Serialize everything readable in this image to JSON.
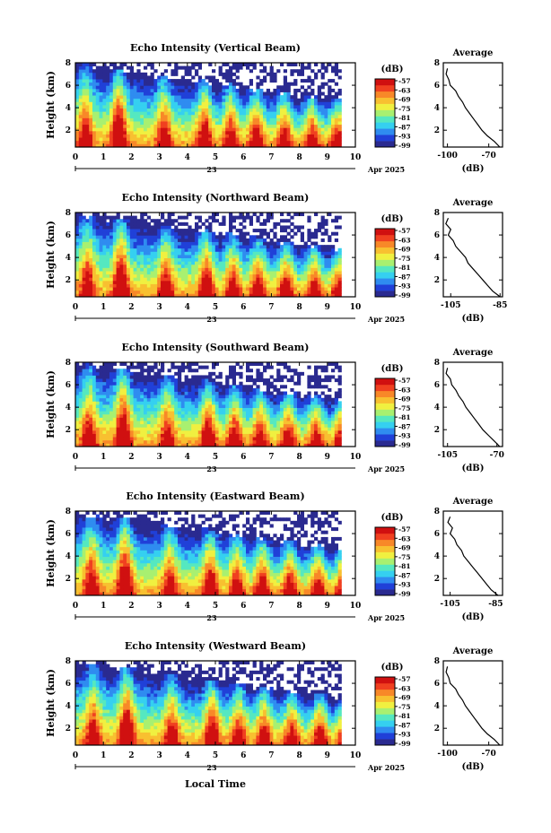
{
  "figure": {
    "xlabel": "Local Time",
    "day_label": "23",
    "month_label": "Apr 2025",
    "colorbar_unit": "(dB)",
    "colorbar_ticks": [
      "-57",
      "-63",
      "-69",
      "-75",
      "-81",
      "-87",
      "-93",
      "-99"
    ],
    "colormap": [
      "#2a2a90",
      "#2040d8",
      "#2f8cf0",
      "#35d0f0",
      "#55e8c0",
      "#a8f070",
      "#f0f040",
      "#f8c030",
      "#f88828",
      "#f04020",
      "#d01010"
    ]
  },
  "chart_data": [
    {
      "type": "heatmap",
      "title": "Echo Intensity (Vertical Beam)",
      "ylabel": "Height (km)",
      "x_ticks": [
        "0",
        "1",
        "2",
        "3",
        "4",
        "5",
        "6",
        "7",
        "8",
        "9",
        "10"
      ],
      "y_ticks": [
        "2",
        "4",
        "6",
        "8"
      ],
      "xlim": [
        0,
        10
      ],
      "ylim": [
        0.5,
        8.0
      ],
      "colorbar_range_db": [
        -99,
        -57
      ],
      "average_profile": {
        "title": "Average",
        "xlabel": "(dB)",
        "x_ticks": [
          "-100",
          "-70"
        ],
        "xlim": [
          -103,
          -60
        ],
        "y_ticks": [
          "2",
          "4",
          "6",
          "8"
        ],
        "height_km": [
          0.5,
          1.0,
          1.5,
          2.0,
          2.5,
          3.0,
          3.5,
          4.0,
          4.5,
          5.0,
          5.5,
          6.0,
          6.5,
          7.0,
          7.5
        ],
        "db": [
          -62,
          -66,
          -71,
          -75,
          -78,
          -81,
          -84,
          -87,
          -89,
          -92,
          -94,
          -98,
          -99,
          -101,
          -100
        ]
      }
    },
    {
      "type": "heatmap",
      "title": "Echo Intensity (Northward Beam)",
      "ylabel": "Height (km)",
      "x_ticks": [
        "0",
        "1",
        "2",
        "3",
        "4",
        "5",
        "6",
        "7",
        "8",
        "9",
        "10"
      ],
      "y_ticks": [
        "2",
        "4",
        "6",
        "8"
      ],
      "xlim": [
        0,
        10
      ],
      "ylim": [
        0.5,
        8.0
      ],
      "colorbar_range_db": [
        -99,
        -57
      ],
      "average_profile": {
        "title": "Average",
        "xlabel": "(dB)",
        "x_ticks": [
          "-105",
          "-85"
        ],
        "xlim": [
          -108,
          -84
        ],
        "y_ticks": [
          "2",
          "4",
          "6",
          "8"
        ],
        "height_km": [
          0.5,
          1.0,
          1.5,
          2.0,
          2.5,
          3.0,
          3.5,
          4.0,
          4.5,
          5.0,
          5.5,
          6.0,
          6.5,
          7.0,
          7.5
        ],
        "db": [
          -85,
          -88,
          -90,
          -92,
          -94,
          -96,
          -98,
          -99,
          -101,
          -103,
          -104,
          -106,
          -105,
          -107,
          -106
        ]
      }
    },
    {
      "type": "heatmap",
      "title": "Echo Intensity (Southward Beam)",
      "ylabel": "Height (km)",
      "x_ticks": [
        "0",
        "1",
        "2",
        "3",
        "4",
        "5",
        "6",
        "7",
        "8",
        "9",
        "10"
      ],
      "y_ticks": [
        "2",
        "4",
        "6",
        "8"
      ],
      "xlim": [
        0,
        10
      ],
      "ylim": [
        0.5,
        8.0
      ],
      "colorbar_range_db": [
        -99,
        -57
      ],
      "average_profile": {
        "title": "Average",
        "xlabel": "(dB)",
        "x_ticks": [
          "-105",
          "-70"
        ],
        "xlim": [
          -108,
          -66
        ],
        "y_ticks": [
          "2",
          "4",
          "6",
          "8"
        ],
        "height_km": [
          0.5,
          1.0,
          1.5,
          2.0,
          2.5,
          3.0,
          3.5,
          4.0,
          4.5,
          5.0,
          5.5,
          6.0,
          6.5,
          7.0,
          7.5
        ],
        "db": [
          -68,
          -72,
          -76,
          -80,
          -83,
          -86,
          -89,
          -92,
          -94,
          -97,
          -99,
          -102,
          -103,
          -106,
          -105
        ]
      }
    },
    {
      "type": "heatmap",
      "title": "Echo Intensity (Eastward Beam)",
      "ylabel": "Height (km)",
      "x_ticks": [
        "0",
        "1",
        "2",
        "3",
        "4",
        "5",
        "6",
        "7",
        "8",
        "9",
        "10"
      ],
      "y_ticks": [
        "2",
        "4",
        "6",
        "8"
      ],
      "xlim": [
        0,
        10
      ],
      "ylim": [
        0.5,
        8.0
      ],
      "colorbar_range_db": [
        -99,
        -57
      ],
      "average_profile": {
        "title": "Average",
        "xlabel": "(dB)",
        "x_ticks": [
          "-105",
          "-85"
        ],
        "xlim": [
          -108,
          -82
        ],
        "y_ticks": [
          "2",
          "4",
          "6",
          "8"
        ],
        "height_km": [
          0.5,
          1.0,
          1.5,
          2.0,
          2.5,
          3.0,
          3.5,
          4.0,
          4.5,
          5.0,
          5.5,
          6.0,
          6.5,
          7.0,
          7.5
        ],
        "db": [
          -84,
          -87,
          -89,
          -91,
          -93,
          -95,
          -97,
          -99,
          -100,
          -102,
          -103,
          -105,
          -104,
          -106,
          -105
        ]
      }
    },
    {
      "type": "heatmap",
      "title": "Echo Intensity (Westward Beam)",
      "ylabel": "Height (km)",
      "x_ticks": [
        "0",
        "1",
        "2",
        "3",
        "4",
        "5",
        "6",
        "7",
        "8",
        "9",
        "10"
      ],
      "y_ticks": [
        "2",
        "4",
        "6",
        "8"
      ],
      "xlim": [
        0,
        10
      ],
      "ylim": [
        0.5,
        8.0
      ],
      "colorbar_range_db": [
        -99,
        -57
      ],
      "average_profile": {
        "title": "Average",
        "xlabel": "(dB)",
        "x_ticks": [
          "-100",
          "-70"
        ],
        "xlim": [
          -103,
          -60
        ],
        "y_ticks": [
          "2",
          "4",
          "6",
          "8"
        ],
        "height_km": [
          0.5,
          1.0,
          1.5,
          2.0,
          2.5,
          3.0,
          3.5,
          4.0,
          4.5,
          5.0,
          5.5,
          6.0,
          6.5,
          7.0,
          7.5
        ],
        "db": [
          -62,
          -66,
          -71,
          -75,
          -78,
          -81,
          -84,
          -87,
          -89,
          -92,
          -94,
          -98,
          -99,
          -101,
          -100
        ]
      }
    }
  ]
}
